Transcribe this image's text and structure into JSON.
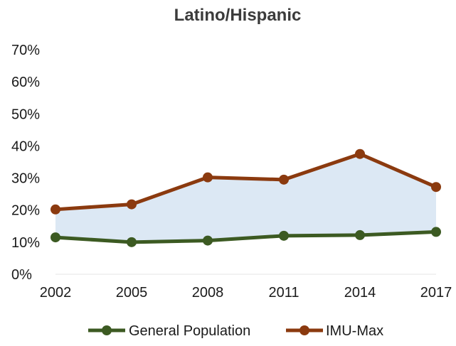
{
  "chart_data": {
    "type": "line",
    "title": "Latino/Hispanic",
    "xlabel": "",
    "ylabel": "",
    "x": [
      "2002",
      "2005",
      "2008",
      "2011",
      "2014",
      "2017"
    ],
    "ylim": [
      0,
      70
    ],
    "yticks": [
      "0%",
      "10%",
      "20%",
      "30%",
      "40%",
      "50%",
      "60%",
      "70%"
    ],
    "grid": false,
    "legend": "bottom",
    "shaded_band_color": "#dce8f4",
    "series": [
      {
        "name": "General Population",
        "color": "#3c5a22",
        "values": [
          11.5,
          10.0,
          10.5,
          12.0,
          12.2,
          13.2
        ]
      },
      {
        "name": "IMU-Max",
        "color": "#8b3a0f",
        "values": [
          20.2,
          21.8,
          30.2,
          29.5,
          37.5,
          27.2
        ]
      }
    ]
  }
}
